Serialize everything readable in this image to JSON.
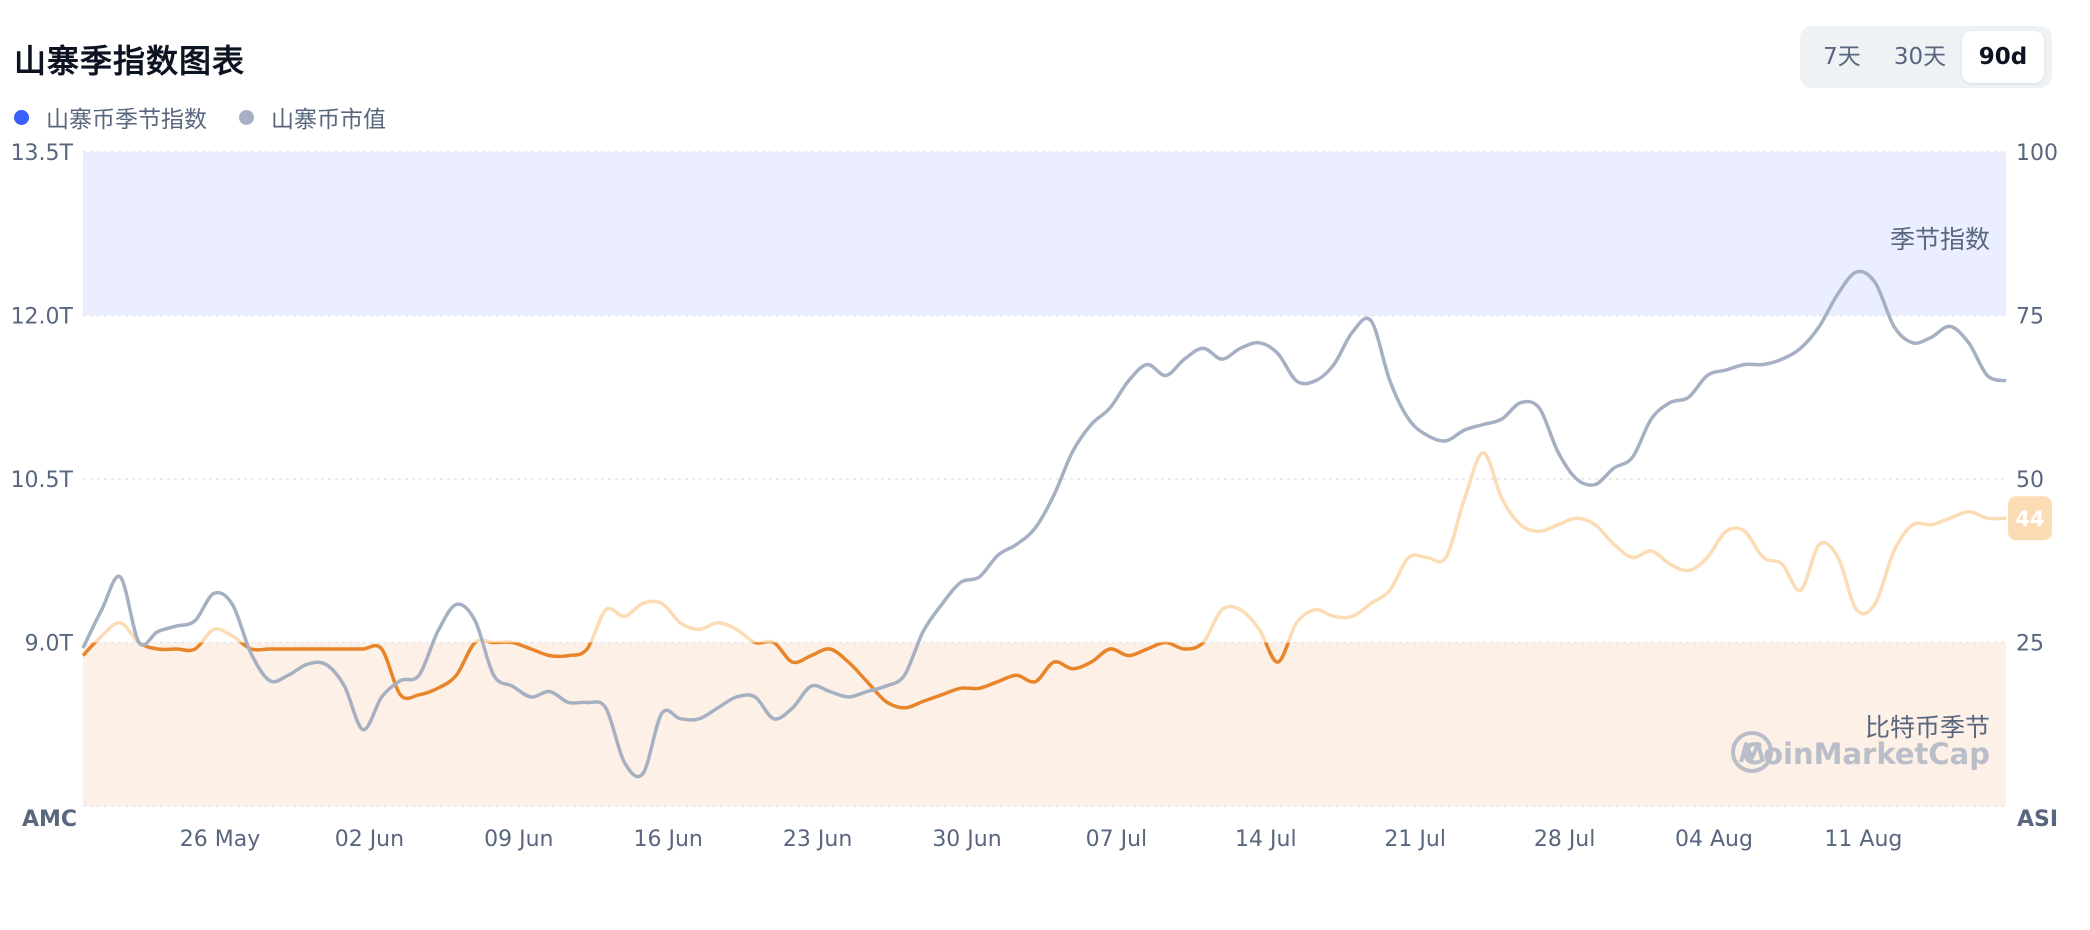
{
  "header": {
    "title": "山寨季指数图表",
    "range_options": [
      "7天",
      "30天",
      "90d"
    ],
    "active_range": "90d"
  },
  "legend": [
    {
      "label": "山寨币季节指数",
      "color": "#3861fb"
    },
    {
      "label": "山寨币市值",
      "color": "#a6b0c3"
    }
  ],
  "colors": {
    "index_orange": "#e8852b",
    "index_faded": "#fbdcb5",
    "marketcap_gray": "#a6b0c3",
    "altseason_zone": "#eaeefe",
    "bitcoin_zone": "#fdf0e6"
  },
  "chart_data": {
    "type": "line",
    "x_ticks": [
      "26 May",
      "02 Jun",
      "09 Jun",
      "16 Jun",
      "23 Jun",
      "30 Jun",
      "07 Jul",
      "14 Jul",
      "21 Jul",
      "28 Jul",
      "04 Aug",
      "11 Aug"
    ],
    "left_axis_label": "AMC",
    "right_axis_label": "ASI",
    "left_ticks": [
      "13.5T",
      "12.0T",
      "10.5T",
      "9.0T"
    ],
    "right_ticks": [
      "100",
      "75",
      "50",
      "25"
    ],
    "left_range_T": [
      7.5,
      13.5
    ],
    "right_range": [
      0,
      100
    ],
    "zones": [
      {
        "label": "季节指数",
        "from": 75,
        "to": 100
      },
      {
        "label": "比特币季节",
        "from": 0,
        "to": 25
      }
    ],
    "current_index_badge": "44",
    "watermark": "CoinMarketCap",
    "start_day": "19 May",
    "series": [
      {
        "name": "山寨币季节指数",
        "axis": "right",
        "values": [
          23,
          26,
          28,
          25,
          24,
          24,
          24,
          27,
          26,
          24,
          24,
          24,
          24,
          24,
          24,
          24,
          24,
          17,
          17,
          18,
          20,
          25,
          25,
          25,
          24,
          23,
          23,
          24,
          30,
          29,
          31,
          31,
          28,
          27,
          28,
          27,
          25,
          25,
          22,
          23,
          24,
          22,
          19,
          16,
          15,
          16,
          17,
          18,
          18,
          19,
          20,
          19,
          22,
          21,
          22,
          24,
          23,
          24,
          25,
          24,
          25,
          30,
          30,
          27,
          22,
          28,
          30,
          29,
          29,
          31,
          33,
          38,
          38,
          38,
          47,
          54,
          47,
          43,
          42,
          43,
          44,
          43,
          40,
          38,
          39,
          37,
          36,
          38,
          42,
          42,
          38,
          37,
          33,
          40,
          38,
          30,
          31,
          39,
          43,
          43,
          44,
          45,
          44,
          44
        ]
      },
      {
        "name": "山寨币市值",
        "axis": "left",
        "values": [
          8.95,
          9.3,
          9.6,
          9.0,
          9.1,
          9.15,
          9.2,
          9.45,
          9.35,
          8.9,
          8.65,
          8.7,
          8.8,
          8.8,
          8.6,
          8.2,
          8.5,
          8.65,
          8.7,
          9.1,
          9.35,
          9.2,
          8.7,
          8.6,
          8.5,
          8.55,
          8.45,
          8.45,
          8.4,
          7.9,
          7.8,
          8.35,
          8.3,
          8.3,
          8.4,
          8.5,
          8.5,
          8.3,
          8.4,
          8.6,
          8.55,
          8.5,
          8.55,
          8.6,
          8.7,
          9.1,
          9.35,
          9.55,
          9.6,
          9.8,
          9.9,
          10.05,
          10.35,
          10.75,
          11.0,
          11.15,
          11.4,
          11.55,
          11.45,
          11.6,
          11.7,
          11.6,
          11.7,
          11.75,
          11.65,
          11.4,
          11.4,
          11.55,
          11.85,
          11.95,
          11.4,
          11.05,
          10.9,
          10.85,
          10.95,
          11.0,
          11.05,
          11.2,
          11.15,
          10.75,
          10.5,
          10.45,
          10.6,
          10.7,
          11.05,
          11.2,
          11.25,
          11.45,
          11.5,
          11.55,
          11.55,
          11.6,
          11.7,
          11.9,
          12.2,
          12.4,
          12.3,
          11.9,
          11.75,
          11.8,
          11.9,
          11.75,
          11.45,
          11.4
        ]
      }
    ]
  }
}
